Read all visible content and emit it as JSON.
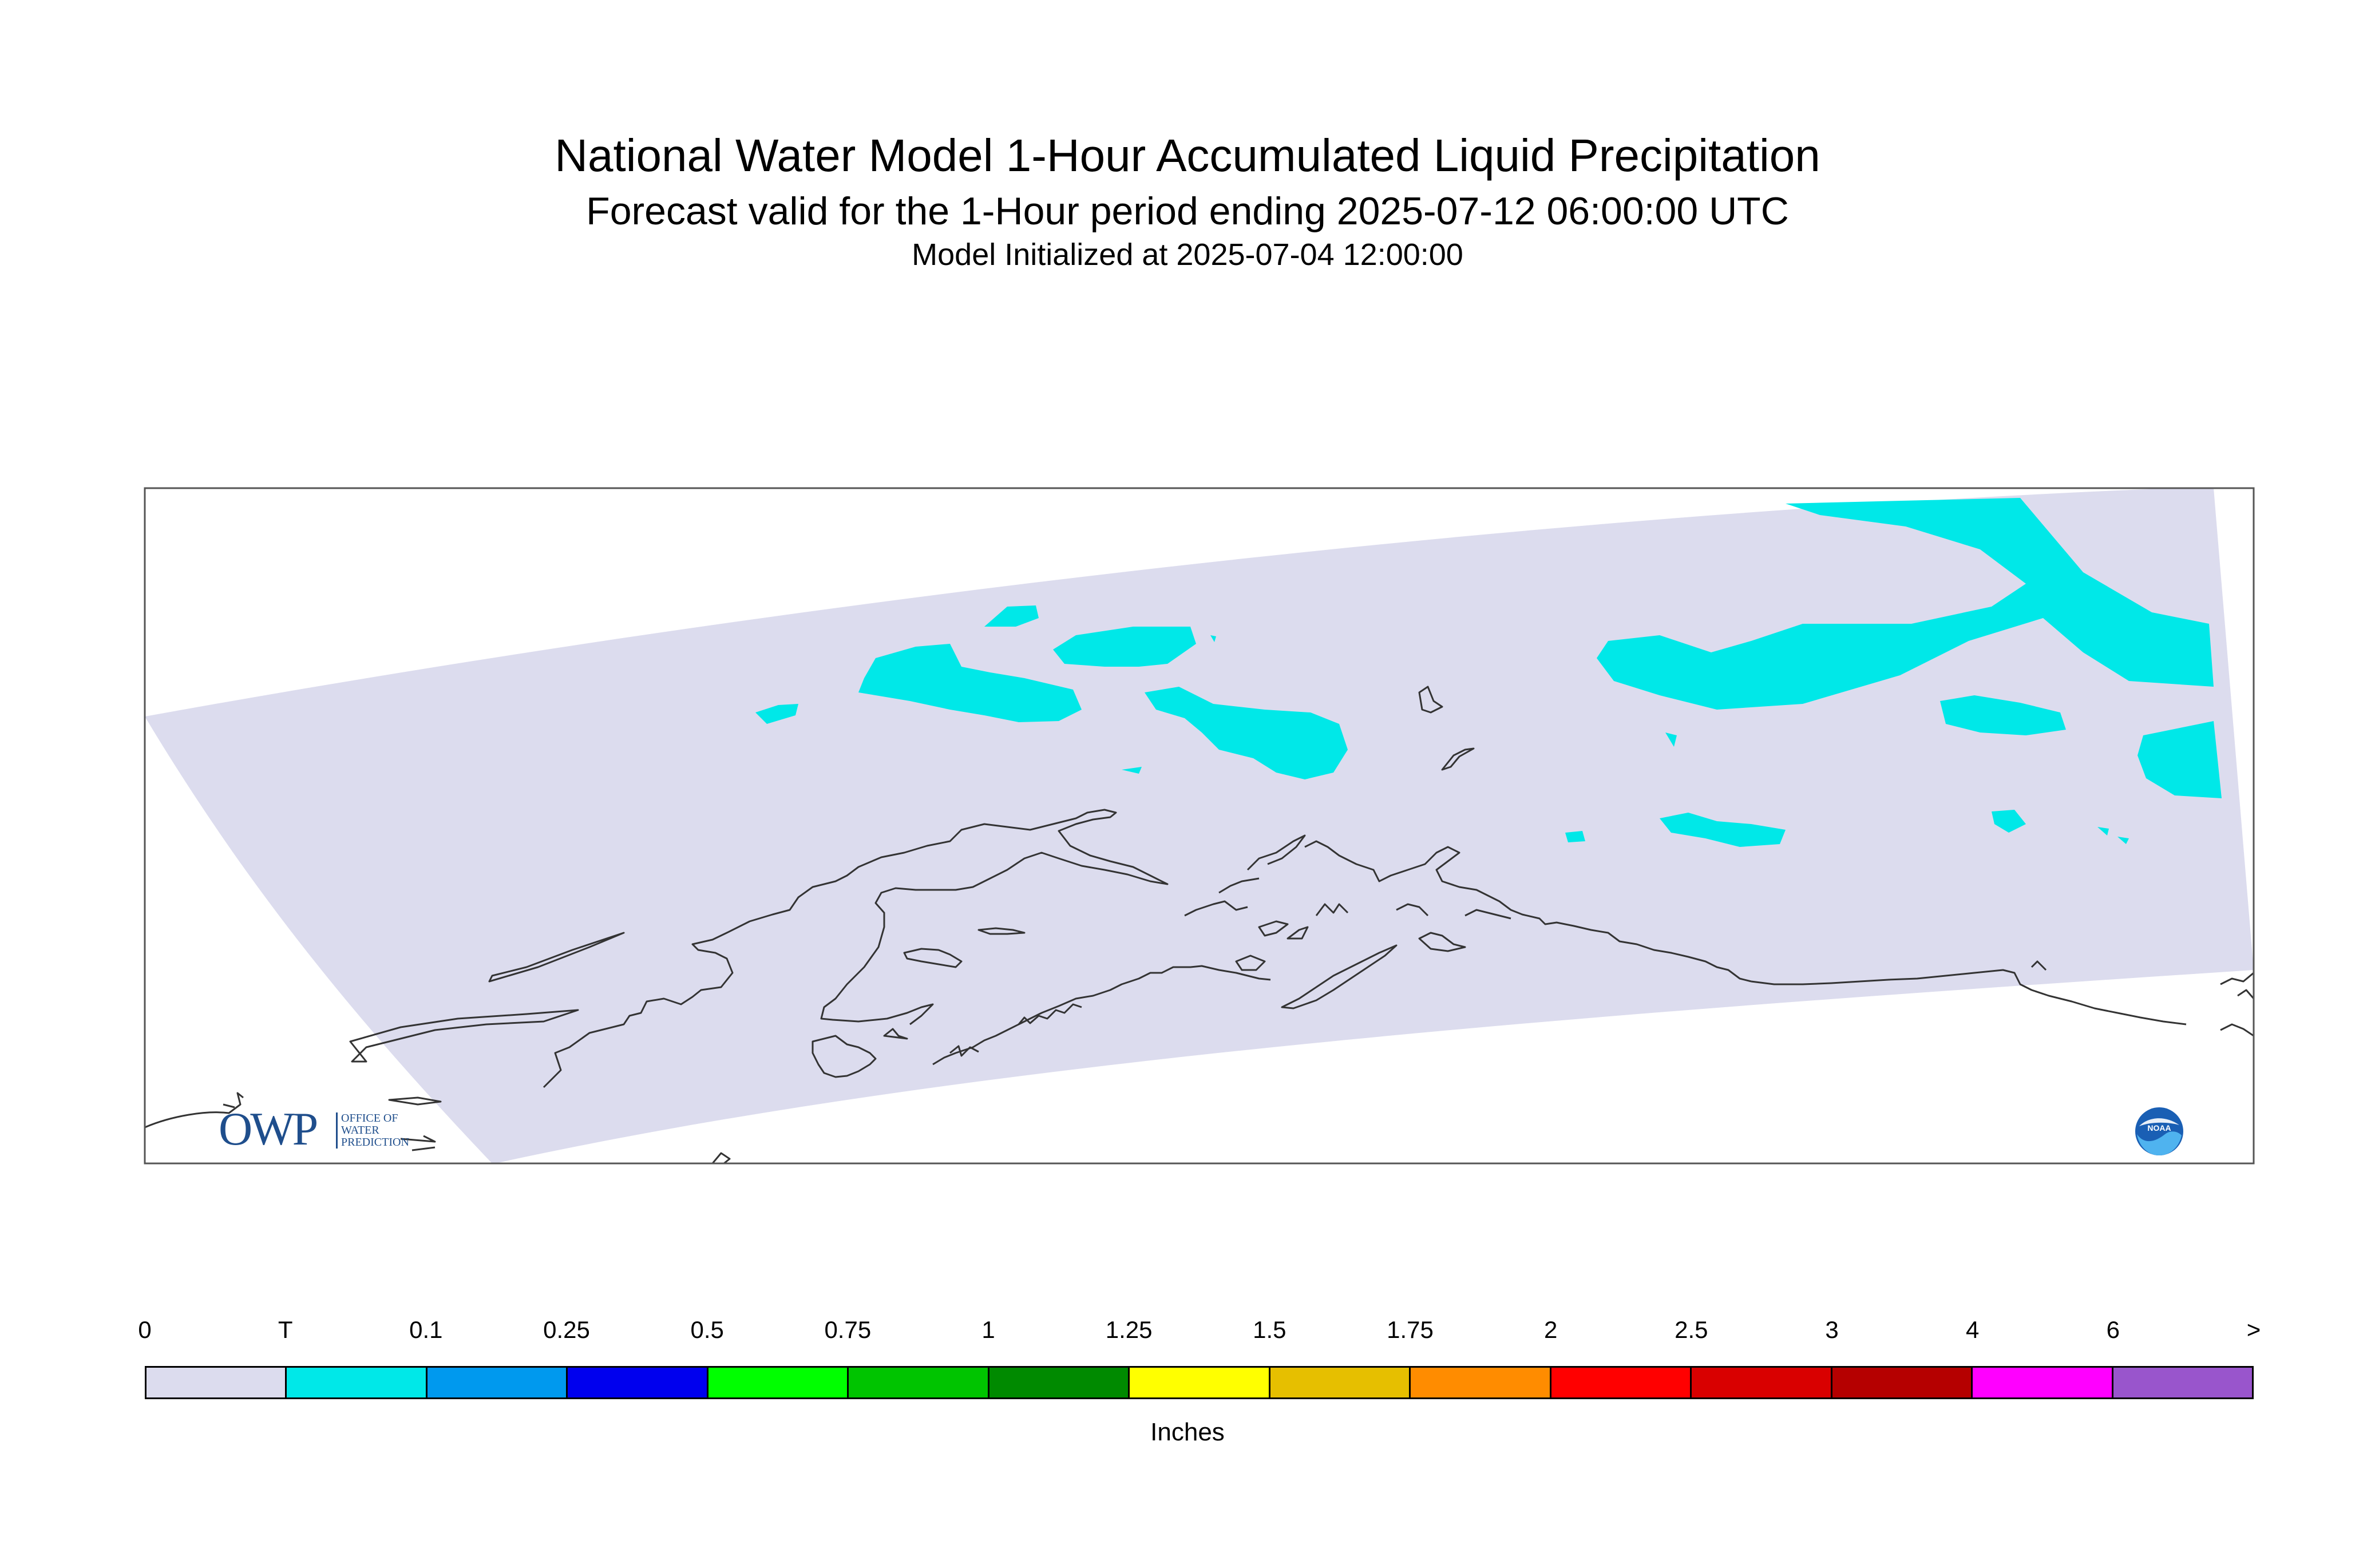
{
  "title": "National Water Model 1-Hour Accumulated Liquid Precipitation",
  "subtitle": "Forecast valid for the 1-Hour period ending 2025-07-12 06:00:00 UTC",
  "initialized": "Model Initialized at 2025-07-04 12:00:00",
  "legend": {
    "unit_label": "Inches",
    "labels": [
      "0",
      "T",
      "0.1",
      "0.25",
      "0.5",
      "0.75",
      "1",
      "1.25",
      "1.5",
      "1.75",
      "2",
      "2.5",
      "3",
      "4",
      "6",
      ">"
    ],
    "colors": [
      "#dcdcee",
      "#00e8e8",
      "#0099ee",
      "#0000ee",
      "#00ff00",
      "#00c400",
      "#008a00",
      "#ffff00",
      "#e6bf00",
      "#ff8c00",
      "#ff0000",
      "#d90000",
      "#b50000",
      "#ff00ff",
      "#9955cc"
    ]
  },
  "map": {
    "domain_color": "#dcdcee",
    "precip_color": "#00e8e8",
    "coast_color": "#333333"
  },
  "logos": {
    "owp_letters": "OWP",
    "owp_text": [
      "OFFICE OF",
      "WATER",
      "PREDICTION"
    ],
    "noaa_text": "NOAA"
  }
}
